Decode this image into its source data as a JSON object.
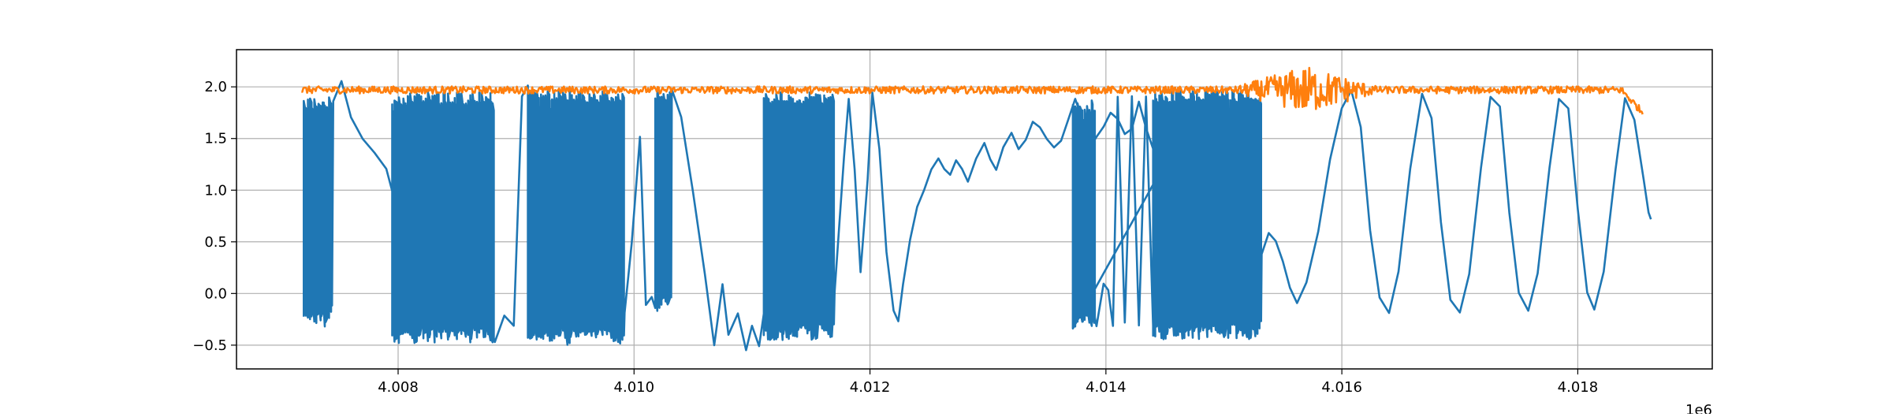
{
  "chart_data": {
    "type": "line",
    "title": "",
    "xlabel": "",
    "ylabel": "",
    "x_offset_label": "1e6",
    "xlim": [
      4.00663,
      4.01914
    ],
    "ylim": [
      -0.73,
      2.36
    ],
    "grid": true,
    "x_ticks": [
      {
        "value": 4.008,
        "label": "4.008"
      },
      {
        "value": 4.01,
        "label": "4.010"
      },
      {
        "value": 4.012,
        "label": "4.012"
      },
      {
        "value": 4.014,
        "label": "4.014"
      },
      {
        "value": 4.016,
        "label": "4.016"
      },
      {
        "value": 4.018,
        "label": "4.018"
      }
    ],
    "y_ticks": [
      {
        "value": -0.5,
        "label": "−0.5"
      },
      {
        "value": 0.0,
        "label": "0.0"
      },
      {
        "value": 0.5,
        "label": "0.5"
      },
      {
        "value": 1.0,
        "label": "1.0"
      },
      {
        "value": 1.5,
        "label": "1.5"
      },
      {
        "value": 2.0,
        "label": "2.0"
      }
    ],
    "series": [
      {
        "color": "#1f77b4",
        "segments": [
          {
            "kind": "switch",
            "x0": 4.0072,
            "x1": 4.00745,
            "low": -0.32,
            "high": 1.9,
            "n": 14
          },
          {
            "kind": "path",
            "points": [
              [
                4.00745,
                1.88
              ],
              [
                4.00752,
                2.05
              ],
              [
                4.0076,
                1.7
              ],
              [
                4.0077,
                1.5
              ],
              [
                4.0078,
                1.35
              ],
              [
                4.0079,
                1.2
              ],
              [
                4.00795,
                1.0
              ]
            ]
          },
          {
            "kind": "switch",
            "x0": 4.00795,
            "x1": 4.00882,
            "low": -0.48,
            "high": 1.95,
            "n": 46
          },
          {
            "kind": "path",
            "points": [
              [
                4.00882,
                -0.45
              ],
              [
                4.0089,
                -0.2
              ],
              [
                4.00898,
                -0.3
              ],
              [
                4.00905,
                1.9
              ],
              [
                4.0091,
                2.0
              ]
            ]
          },
          {
            "kind": "switch",
            "x0": 4.0091,
            "x1": 4.00992,
            "low": -0.5,
            "high": 1.97,
            "n": 44
          },
          {
            "kind": "path",
            "points": [
              [
                4.00992,
                -0.2
              ],
              [
                4.00998,
                0.5
              ],
              [
                4.01005,
                1.5
              ],
              [
                4.0101,
                -0.1
              ],
              [
                4.01015,
                -0.05
              ],
              [
                4.01018,
                -0.15
              ]
            ]
          },
          {
            "kind": "switch",
            "x0": 4.01018,
            "x1": 4.01032,
            "low": -0.18,
            "high": 1.98,
            "n": 8
          },
          {
            "kind": "path",
            "points": [
              [
                4.01032,
                1.98
              ],
              [
                4.0104,
                1.7
              ],
              [
                4.0105,
                1.0
              ],
              [
                4.0106,
                0.2
              ],
              [
                4.01068,
                -0.5
              ],
              [
                4.01075,
                0.1
              ],
              [
                4.0108,
                -0.4
              ],
              [
                4.01088,
                -0.2
              ],
              [
                4.01095,
                -0.55
              ],
              [
                4.011,
                -0.3
              ],
              [
                4.01106,
                -0.5
              ],
              [
                4.0111,
                -0.2
              ]
            ]
          },
          {
            "kind": "switch",
            "x0": 4.0111,
            "x1": 4.0117,
            "low": -0.45,
            "high": 1.95,
            "n": 34
          },
          {
            "kind": "path",
            "points": [
              [
                4.0117,
                0.0
              ],
              [
                4.01178,
                1.3
              ],
              [
                4.01182,
                1.9
              ],
              [
                4.01187,
                1.2
              ],
              [
                4.01192,
                0.2
              ],
              [
                4.01198,
                1.1
              ],
              [
                4.01202,
                1.95
              ],
              [
                4.01208,
                1.4
              ],
              [
                4.01214,
                0.4
              ],
              [
                4.0122,
                -0.15
              ],
              [
                4.01224,
                -0.25
              ],
              [
                4.01228,
                0.1
              ],
              [
                4.01234,
                0.5
              ],
              [
                4.0124,
                0.85
              ],
              [
                4.01246,
                1.0
              ],
              [
                4.01252,
                1.2
              ],
              [
                4.01258,
                1.3
              ],
              [
                4.01263,
                1.2
              ],
              [
                4.01268,
                1.15
              ],
              [
                4.01273,
                1.28
              ],
              [
                4.01278,
                1.2
              ],
              [
                4.01283,
                1.1
              ],
              [
                4.0129,
                1.3
              ],
              [
                4.01297,
                1.45
              ],
              [
                4.01302,
                1.3
              ],
              [
                4.01307,
                1.2
              ],
              [
                4.01313,
                1.4
              ],
              [
                4.0132,
                1.55
              ],
              [
                4.01326,
                1.4
              ],
              [
                4.01332,
                1.48
              ],
              [
                4.01338,
                1.68
              ],
              [
                4.01344,
                1.62
              ],
              [
                4.0135,
                1.5
              ],
              [
                4.01356,
                1.4
              ],
              [
                4.01362,
                1.48
              ],
              [
                4.01368,
                1.7
              ],
              [
                4.01374,
                1.88
              ],
              [
                4.0138,
                1.7
              ],
              [
                4.01386,
                1.4
              ],
              [
                4.01392,
                1.5
              ],
              [
                4.01398,
                1.6
              ],
              [
                4.01404,
                1.75
              ],
              [
                4.0141,
                1.7
              ],
              [
                4.01416,
                1.55
              ],
              [
                4.01422,
                1.58
              ],
              [
                4.01428,
                1.85
              ],
              [
                4.01434,
                1.6
              ],
              [
                4.0144,
                1.4
              ],
              [
                4.01446,
                1.3
              ],
              [
                4.01452,
                1.3
              ],
              [
                4.01458,
                1.35
              ],
              [
                4.01462,
                1.5
              ]
            ]
          },
          {
            "kind": "switch",
            "x0": 4.01372,
            "x1": 4.01392,
            "low": -0.35,
            "high": 1.88,
            "n": 10
          },
          {
            "kind": "path",
            "points": [
              [
                4.01392,
                -0.3
              ],
              [
                4.01398,
                0.1
              ],
              [
                4.01402,
                0.05
              ],
              [
                4.01406,
                -0.3
              ],
              [
                4.0141,
                1.9
              ],
              [
                4.01416,
                -0.3
              ],
              [
                4.01422,
                1.9
              ],
              [
                4.01428,
                -0.3
              ],
              [
                4.01434,
                1.9
              ],
              [
                4.0144,
                -0.3
              ]
            ]
          },
          {
            "kind": "switch",
            "x0": 4.0144,
            "x1": 4.01532,
            "low": -0.45,
            "high": 1.97,
            "n": 52
          },
          {
            "kind": "path",
            "points": [
              [
                4.01532,
                0.4
              ],
              [
                4.01538,
                0.6
              ],
              [
                4.01544,
                0.5
              ],
              [
                4.0155,
                0.3
              ],
              [
                4.01556,
                0.05
              ],
              [
                4.01562,
                -0.1
              ],
              [
                4.0157,
                0.1
              ],
              [
                4.0158,
                0.6
              ],
              [
                4.0159,
                1.3
              ],
              [
                4.016,
                1.8
              ],
              [
                4.01608,
                1.95
              ],
              [
                4.01616,
                1.6
              ],
              [
                4.01624,
                0.6
              ],
              [
                4.01632,
                -0.05
              ],
              [
                4.0164,
                -0.18
              ],
              [
                4.01648,
                0.2
              ],
              [
                4.01658,
                1.2
              ],
              [
                4.01668,
                1.92
              ],
              [
                4.01676,
                1.7
              ],
              [
                4.01684,
                0.7
              ],
              [
                4.01692,
                -0.05
              ],
              [
                4.017,
                -0.2
              ],
              [
                4.01708,
                0.2
              ],
              [
                4.01718,
                1.2
              ],
              [
                4.01726,
                1.9
              ],
              [
                4.01734,
                1.8
              ],
              [
                4.01742,
                0.8
              ],
              [
                4.0175,
                0.0
              ],
              [
                4.01758,
                -0.18
              ],
              [
                4.01766,
                0.2
              ],
              [
                4.01776,
                1.2
              ],
              [
                4.01784,
                1.9
              ],
              [
                4.01792,
                1.8
              ],
              [
                4.018,
                0.8
              ],
              [
                4.01808,
                0.0
              ],
              [
                4.01814,
                -0.15
              ],
              [
                4.01822,
                0.2
              ],
              [
                4.01832,
                1.2
              ],
              [
                4.0184,
                1.9
              ],
              [
                4.01848,
                1.7
              ],
              [
                4.01856,
                1.1
              ],
              [
                4.0186,
                0.8
              ],
              [
                4.01862,
                0.72
              ]
            ]
          }
        ]
      },
      {
        "color": "#ff7f0e",
        "baseline": 1.97,
        "x_start": 4.00718,
        "x_end": 4.01855,
        "burst_center": 4.0157,
        "burst_amplitude": 0.2,
        "end_value": 1.75
      }
    ]
  }
}
